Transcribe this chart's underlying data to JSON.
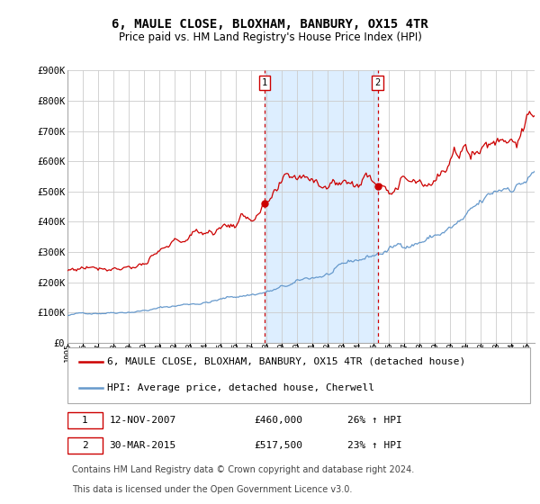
{
  "title": "6, MAULE CLOSE, BLOXHAM, BANBURY, OX15 4TR",
  "subtitle": "Price paid vs. HM Land Registry's House Price Index (HPI)",
  "ylabel_ticks": [
    "£0",
    "£100K",
    "£200K",
    "£300K",
    "£400K",
    "£500K",
    "£600K",
    "£700K",
    "£800K",
    "£900K"
  ],
  "ylim": [
    0,
    900000
  ],
  "xlim_start": 1995.0,
  "xlim_end": 2025.5,
  "sale1_date": 2007.87,
  "sale1_price": 460000,
  "sale1_label": "1",
  "sale1_row": "1    12-NOV-2007         £460,000    26% ↑ HPI",
  "sale2_date": 2015.25,
  "sale2_price": 517500,
  "sale2_label": "2",
  "sale2_row": "2    30-MAR-2015         £517,500    23% ↑ HPI",
  "legend_house": "6, MAULE CLOSE, BLOXHAM, BANBURY, OX15 4TR (detached house)",
  "legend_hpi": "HPI: Average price, detached house, Cherwell",
  "footnote1": "Contains HM Land Registry data © Crown copyright and database right 2024.",
  "footnote2": "This data is licensed under the Open Government Licence v3.0.",
  "house_color": "#cc0000",
  "hpi_color": "#6699cc",
  "shade_color": "#ddeeff",
  "background_color": "#ffffff",
  "grid_color": "#cccccc",
  "sale_vline_color": "#cc0000",
  "title_fontsize": 10,
  "subtitle_fontsize": 8.5,
  "tick_fontsize": 7.5,
  "legend_fontsize": 8,
  "footnote_fontsize": 7
}
